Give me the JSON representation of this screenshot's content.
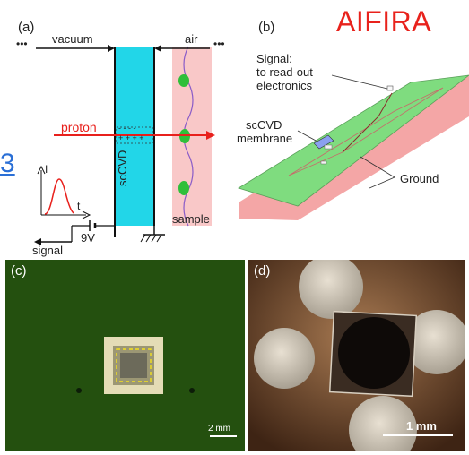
{
  "header": {
    "title": "AIFIRA",
    "left_fragment": "3"
  },
  "panel_a": {
    "tag": "(a)",
    "vacuum": "vacuum",
    "air": "air",
    "proton": "proton",
    "detector": "scCVD",
    "sample": "sample",
    "signal": "signal",
    "voltage": "9V",
    "axis_i": "I",
    "axis_t": "t",
    "dots_left": "•••",
    "dots_right": "•••",
    "minus_row": "- - - -",
    "plus_row": "+ + + +",
    "colors": {
      "detector": "#22d6e8",
      "sample": "#f9c8c8",
      "proton": "#e8201c",
      "droplet": "#2fbf3a"
    }
  },
  "panel_b": {
    "tag": "(b)",
    "signal_label": "Signal:",
    "signal_line2": "to read-out",
    "signal_line3": "electronics",
    "membrane_line1": "scCVD",
    "membrane_line2": "membrane",
    "ground": "Ground",
    "colors": {
      "top_plate": "#7fdc7f",
      "bottom_plate": "#f4a6a6"
    }
  },
  "panel_c": {
    "tag": "(c)",
    "scale": "2 mm"
  },
  "panel_d": {
    "tag": "(d)",
    "scale": "1 mm"
  }
}
